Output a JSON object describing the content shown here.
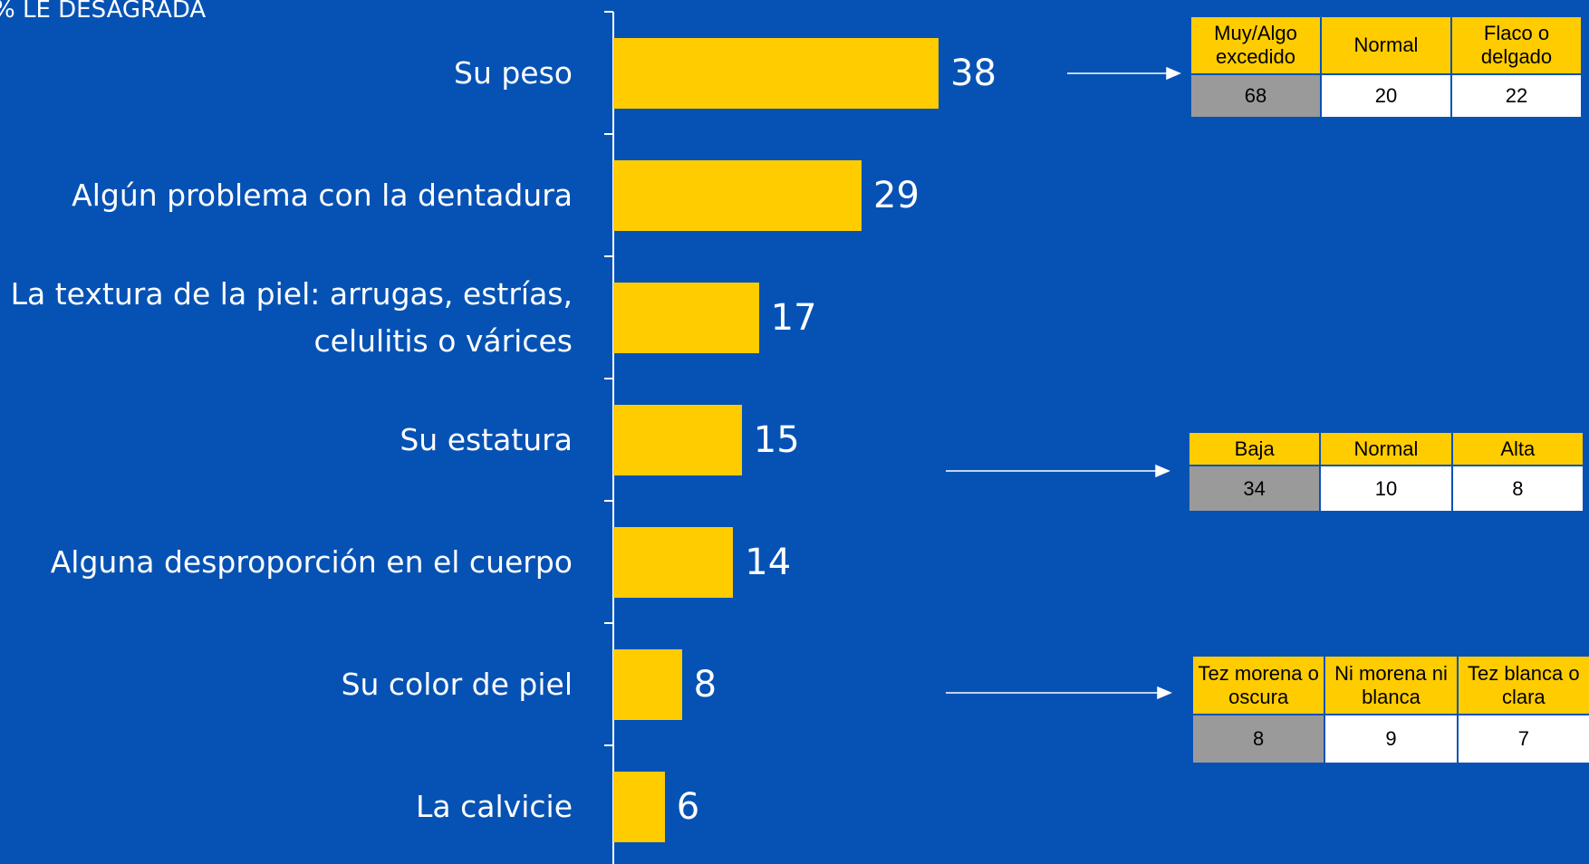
{
  "chart_data": {
    "type": "bar",
    "orientation": "horizontal",
    "title": "% LE DESAGRADA",
    "categories": [
      "Su peso",
      "Algún problema con la dentadura",
      "La textura de la piel: arrugas, estrías,\ncelulitis o várices",
      "Su estatura",
      "Alguna desproporción en el cuerpo",
      "Su color de piel",
      "La calvicie"
    ],
    "values": [
      38,
      29,
      17,
      15,
      14,
      8,
      6
    ],
    "color": "#ffcc00",
    "xlim": [
      0,
      100
    ]
  },
  "tables": [
    {
      "headers": [
        "Muy/Algo excedido",
        "Normal",
        "Flaco o delgado"
      ],
      "values": [
        68,
        20,
        22
      ]
    },
    {
      "headers": [
        "Baja",
        "Normal",
        "Alta"
      ],
      "values": [
        34,
        10,
        8
      ]
    },
    {
      "headers": [
        "Tez morena o oscura",
        "Ni morena ni blanca",
        "Tez blanca o clara"
      ],
      "values": [
        8,
        9,
        7
      ]
    }
  ]
}
